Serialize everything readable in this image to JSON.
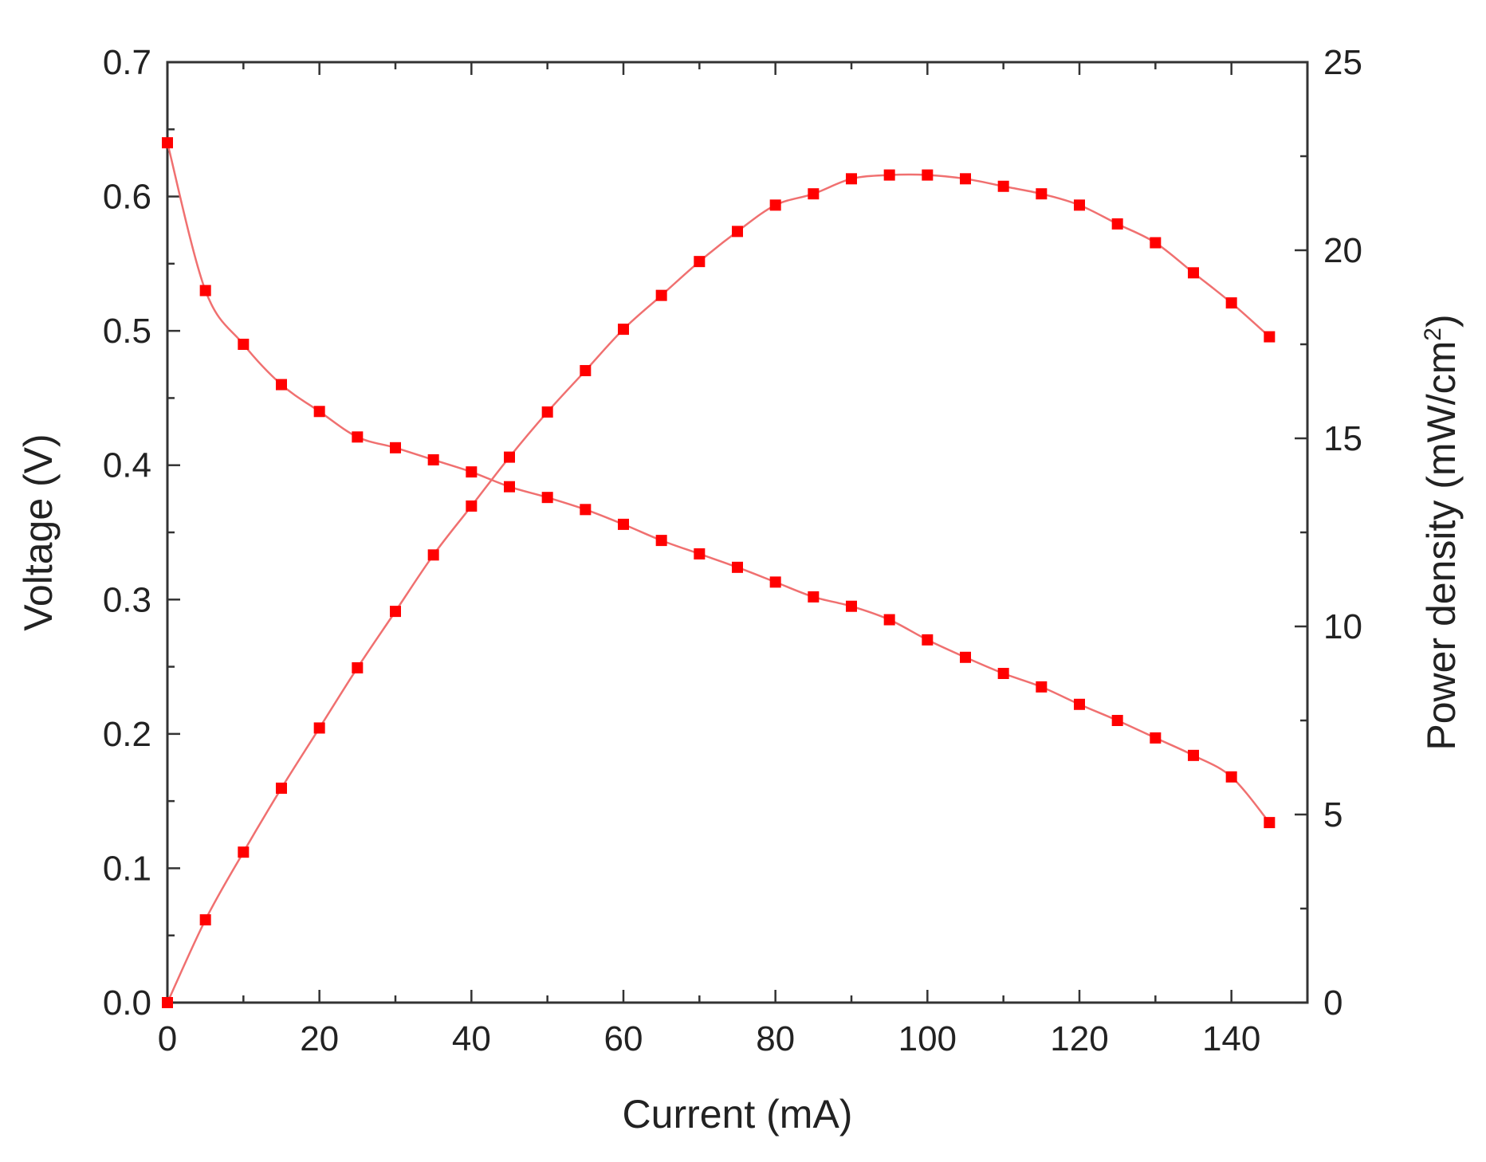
{
  "chart_data": {
    "type": "line",
    "xlabel": "Current (mA)",
    "ylabel_left": "Voltage (V)",
    "ylabel_right": "Power density (mW/cm",
    "ylabel_right_sup": "2",
    "ylabel_right_close": ")",
    "xlim": [
      0,
      150
    ],
    "ylim_left": [
      0,
      0.7
    ],
    "ylim_right": [
      0,
      25
    ],
    "x_ticks": [
      0,
      20,
      40,
      60,
      80,
      100,
      120,
      140
    ],
    "x_tick_labels": [
      "0",
      "20",
      "40",
      "60",
      "80",
      "100",
      "120",
      "140"
    ],
    "y_left_ticks": [
      0,
      0.1,
      0.2,
      0.3,
      0.4,
      0.5,
      0.6,
      0.7
    ],
    "y_left_tick_labels": [
      "0.0",
      "0.1",
      "0.2",
      "0.3",
      "0.4",
      "0.5",
      "0.6",
      "0.7"
    ],
    "y_right_ticks": [
      0,
      5,
      10,
      15,
      20,
      25
    ],
    "y_right_tick_labels": [
      "0",
      "5",
      "10",
      "15",
      "20",
      "25"
    ],
    "grid": false,
    "colors": {
      "series": "#ff0000",
      "line": "#f07070",
      "axes": "#333333"
    },
    "series": [
      {
        "axis": "left",
        "x": [
          0,
          5,
          10,
          15,
          20,
          25,
          30,
          35,
          40,
          45,
          50,
          55,
          60,
          65,
          70,
          75,
          80,
          85,
          90,
          95,
          100,
          105,
          110,
          115,
          120,
          125,
          130,
          135,
          140,
          145
        ],
        "y": [
          0.64,
          0.53,
          0.49,
          0.46,
          0.44,
          0.421,
          0.413,
          0.404,
          0.395,
          0.384,
          0.376,
          0.367,
          0.356,
          0.344,
          0.334,
          0.324,
          0.313,
          0.302,
          0.295,
          0.285,
          0.27,
          0.257,
          0.245,
          0.235,
          0.222,
          0.21,
          0.197,
          0.184,
          0.168,
          0.134
        ]
      },
      {
        "axis": "right",
        "x": [
          0,
          5,
          10,
          15,
          20,
          25,
          30,
          35,
          40,
          45,
          50,
          55,
          60,
          65,
          70,
          75,
          80,
          85,
          90,
          95,
          100,
          105,
          110,
          115,
          120,
          125,
          130,
          135,
          140,
          145
        ],
        "y": [
          0,
          2.2,
          4.0,
          5.7,
          7.3,
          8.9,
          10.4,
          11.9,
          13.2,
          14.5,
          15.7,
          16.8,
          17.9,
          18.8,
          19.7,
          20.5,
          21.2,
          21.5,
          21.9,
          22.0,
          22.0,
          21.9,
          21.7,
          21.5,
          21.2,
          20.7,
          20.2,
          19.4,
          18.6,
          17.7
        ]
      }
    ]
  }
}
